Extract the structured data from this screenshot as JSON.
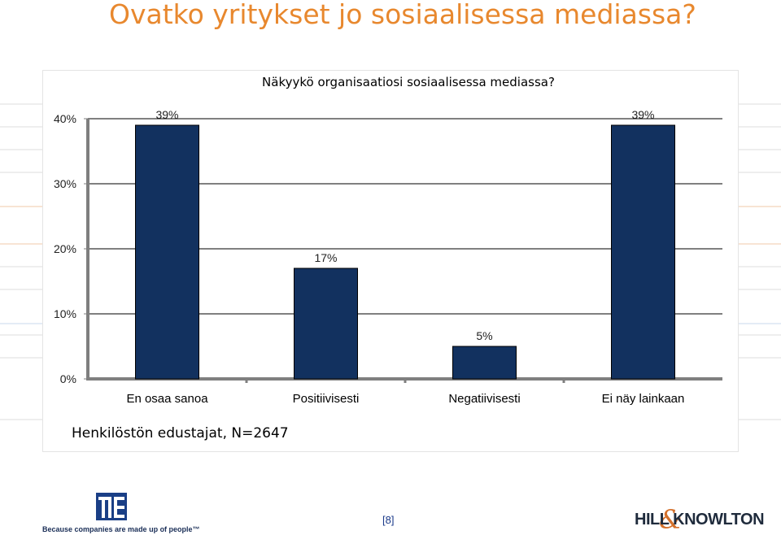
{
  "slide": {
    "title": "Ovatko yritykset jo sosiaalisessa mediassa?",
    "footnote": "Henkilöstön edustajat, N=2647",
    "page_number": "[8]",
    "tagline": "Because companies are made up of people™",
    "brand_right": "HILL KNOWLTON",
    "brand_right_amp": "&"
  },
  "colors": {
    "title": "#e8882e",
    "bar": "#12315f",
    "axis": "#7f7f7f",
    "grid": "#000000"
  },
  "chart_data": {
    "type": "bar",
    "title": "Näkyykö organisaatiosi sosiaalisessa mediassa?",
    "categories": [
      "En osaa sanoa",
      "Positiivisesti",
      "Negatiivisesti",
      "Ei näy lainkaan"
    ],
    "values": [
      39,
      17,
      5,
      39
    ],
    "data_labels": [
      "39%",
      "17%",
      "5%",
      "39%"
    ],
    "yticks": [
      "0%",
      "10%",
      "20%",
      "30%",
      "40%"
    ],
    "ylim": [
      0,
      40
    ],
    "grid": true,
    "xlabel": "",
    "ylabel": ""
  }
}
